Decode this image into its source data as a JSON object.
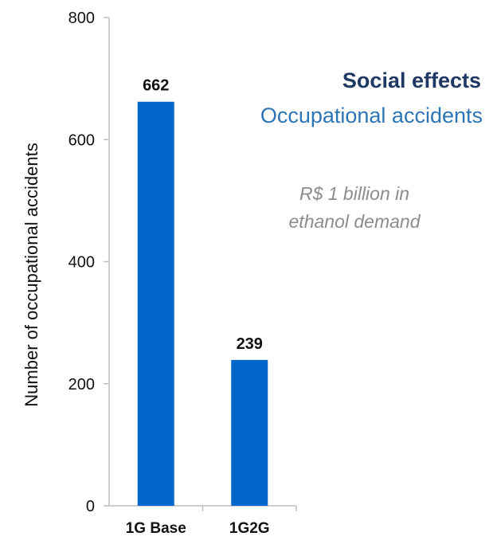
{
  "heading": {
    "title": "Social effects",
    "subtitle": "Occupational accidents",
    "note_line1": "R$ 1 billion in",
    "note_line2": "ethanol demand",
    "title_color": "#1f3864",
    "subtitle_color": "#2e75b6"
  },
  "chart_data": {
    "type": "bar",
    "categories": [
      "1G Base",
      "1G2G"
    ],
    "values": [
      662,
      239
    ],
    "data_labels": [
      "662",
      "239"
    ],
    "title": "",
    "xlabel": "",
    "ylabel": "Number of occupational accidents",
    "ylim": [
      0,
      800
    ],
    "yticks": [
      0,
      200,
      400,
      600,
      800
    ],
    "grid": false,
    "legend": "none",
    "bar_color": "#0066cc"
  }
}
